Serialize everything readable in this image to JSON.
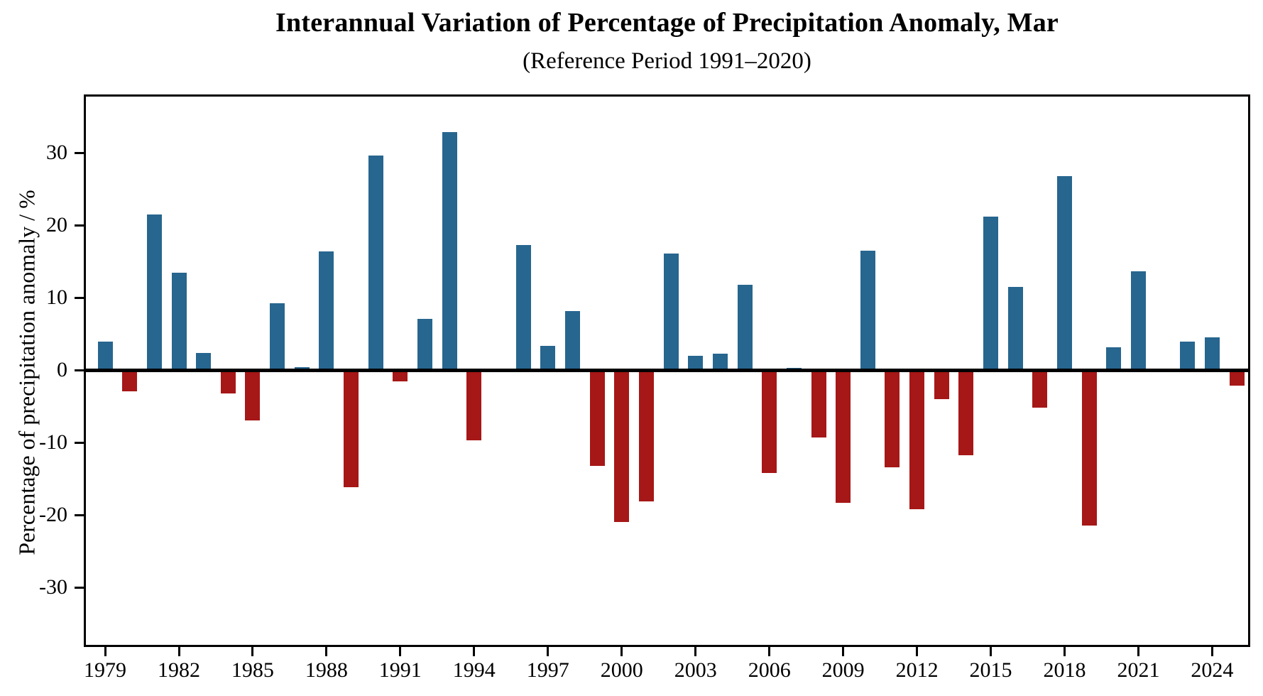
{
  "chart_data": {
    "type": "bar",
    "title": "Interannual Variation of Percentage of Precipitation Anomaly, Mar",
    "subtitle": "(Reference Period 1991–2020)",
    "ylabel": "Percentage of precipitation anomaly / %",
    "xlabel": "",
    "x": [
      1979,
      1980,
      1981,
      1982,
      1983,
      1984,
      1985,
      1986,
      1987,
      1988,
      1989,
      1990,
      1991,
      1992,
      1993,
      1994,
      1995,
      1996,
      1997,
      1998,
      1999,
      2000,
      2001,
      2002,
      2003,
      2004,
      2005,
      2006,
      2007,
      2008,
      2009,
      2010,
      2011,
      2012,
      2013,
      2014,
      2015,
      2016,
      2017,
      2018,
      2019,
      2020,
      2021,
      2022,
      2023,
      2024,
      2025
    ],
    "values": [
      3.9,
      -2.9,
      21.5,
      13.4,
      2.4,
      -3.2,
      -7.0,
      9.2,
      0.4,
      16.4,
      -16.2,
      29.6,
      -1.6,
      7.1,
      32.8,
      -9.7,
      0.0,
      17.3,
      3.3,
      8.1,
      -13.2,
      -21.0,
      -18.1,
      16.1,
      2.0,
      2.3,
      11.8,
      -14.2,
      0.3,
      -9.3,
      -18.3,
      16.5,
      -13.4,
      -19.2,
      -4.0,
      -11.8,
      21.2,
      11.5,
      -5.2,
      26.8,
      -21.5,
      3.1,
      13.6,
      0.2,
      3.9,
      4.5,
      -2.2
    ],
    "ylim": [
      -38.2,
      38.1
    ],
    "yticks": [
      30,
      20,
      10,
      0,
      -10,
      -20,
      -30
    ],
    "ytick_labels": [
      "30",
      "20",
      "10",
      "0",
      "-10",
      "-20",
      "-30"
    ],
    "xticks": [
      1979,
      1982,
      1985,
      1988,
      1991,
      1994,
      1997,
      2000,
      2003,
      2006,
      2009,
      2012,
      2015,
      2018,
      2021,
      2024
    ],
    "xtick_labels": [
      "1979",
      "1982",
      "1985",
      "1988",
      "1991",
      "1994",
      "1997",
      "2000",
      "2003",
      "2006",
      "2009",
      "2012",
      "2015",
      "2018",
      "2021",
      "2024"
    ],
    "grid": false,
    "legend": null,
    "colors": {
      "positive": "#27668f",
      "negative": "#a61717",
      "axis": "#000000",
      "background": "#ffffff"
    }
  }
}
